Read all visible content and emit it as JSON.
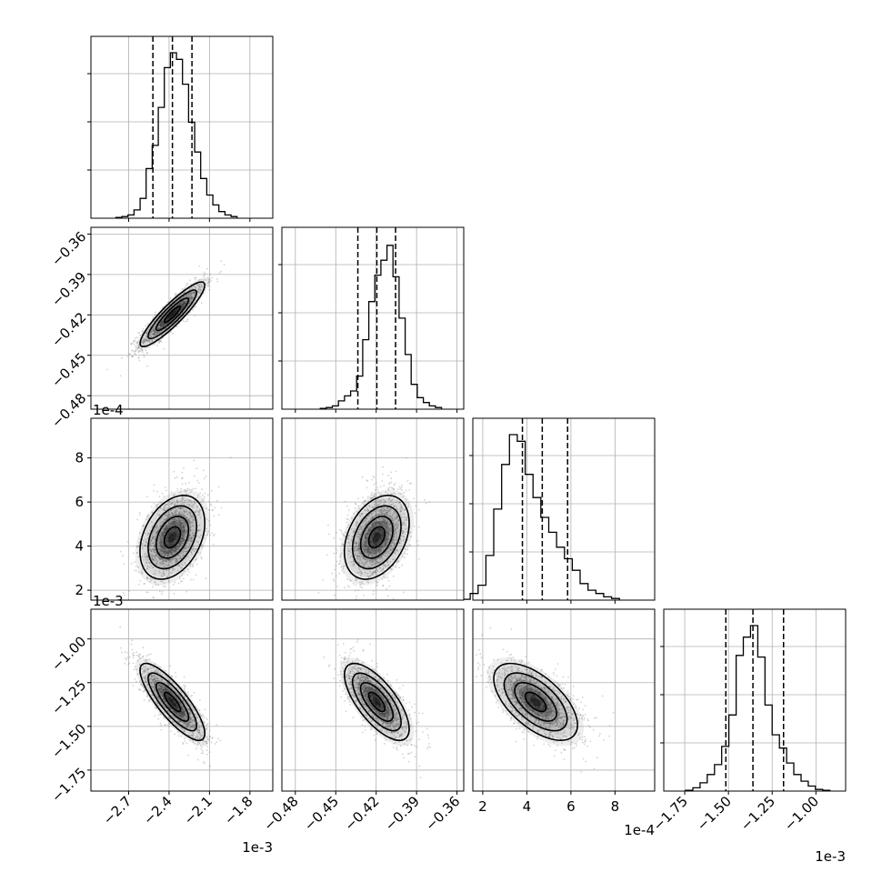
{
  "chart_data": {
    "type": "corner",
    "n_params": 4,
    "colors": {
      "hist_line": "#000000",
      "quantile_line": "#000000",
      "grid": "#b0b0b0",
      "contour": "#000000",
      "density_fill": "#000000",
      "scatter": "#808080",
      "background": "#ffffff"
    },
    "grid": true,
    "parameters": [
      {
        "range": [
          -2.98,
          -1.63
        ],
        "ticks": [
          -2.7,
          -2.4,
          -2.1,
          -1.8
        ],
        "tick_labels": [
          "−2.7",
          "−2.4",
          "−2.1",
          "−1.8"
        ],
        "offset_label": "1e-3",
        "mean": -2.375,
        "std": 0.12,
        "quantiles": [
          -2.52,
          -2.375,
          -2.23
        ],
        "hist_heights": [
          0.005,
          0.01,
          0.02,
          0.05,
          0.12,
          0.3,
          0.44,
          0.67,
          0.91,
          1.0,
          0.96,
          0.81,
          0.58,
          0.4,
          0.24,
          0.14,
          0.08,
          0.04,
          0.02,
          0.01
        ]
      },
      {
        "range": [
          -0.49,
          -0.355
        ],
        "ticks": [
          -0.48,
          -0.45,
          -0.42,
          -0.39,
          -0.36
        ],
        "tick_labels": [
          "−0.48",
          "−0.45",
          "−0.42",
          "−0.39",
          "−0.36"
        ],
        "offset_label": "",
        "mean": -0.4195,
        "std": 0.012,
        "quantiles": [
          -0.4336,
          -0.4195,
          -0.4056
        ],
        "hist_heights": [
          0.005,
          0.01,
          0.02,
          0.05,
          0.08,
          0.11,
          0.2,
          0.42,
          0.65,
          0.81,
          0.9,
          0.99,
          0.8,
          0.55,
          0.33,
          0.15,
          0.07,
          0.04,
          0.02,
          0.01
        ]
      },
      {
        "range": [
          1.55,
          9.8
        ],
        "ticks": [
          2,
          4,
          6,
          8
        ],
        "tick_labels": [
          "2",
          "4",
          "6",
          "8"
        ],
        "offset_label": "1e-4",
        "mean": 4.4,
        "std": 0.95,
        "quantiles": [
          3.8,
          4.7,
          5.85
        ],
        "hist_heights": [
          0.005,
          0.04,
          0.09,
          0.27,
          0.55,
          0.82,
          1.0,
          0.96,
          0.76,
          0.62,
          0.5,
          0.41,
          0.32,
          0.25,
          0.18,
          0.1,
          0.06,
          0.04,
          0.02,
          0.01
        ]
      },
      {
        "range": [
          -1.87,
          -0.83
        ],
        "ticks": [
          -1.75,
          -1.5,
          -1.25,
          -1.0
        ],
        "tick_labels": [
          "−1.75",
          "−1.50",
          "−1.25",
          "−1.00"
        ],
        "offset_label": "1e-3",
        "mean": -1.36,
        "std": 0.11,
        "quantiles": [
          -1.515,
          -1.36,
          -1.185
        ],
        "hist_heights": [
          0.005,
          0.02,
          0.05,
          0.1,
          0.16,
          0.27,
          0.46,
          0.82,
          0.93,
          1.0,
          0.81,
          0.52,
          0.34,
          0.26,
          0.17,
          0.1,
          0.06,
          0.03,
          0.01,
          0.005
        ]
      }
    ],
    "correlations": {
      "0-1": 0.9,
      "0-2": 0.35,
      "1-2": 0.35,
      "0-3": -0.82,
      "1-3": -0.7,
      "2-3": -0.6
    }
  }
}
